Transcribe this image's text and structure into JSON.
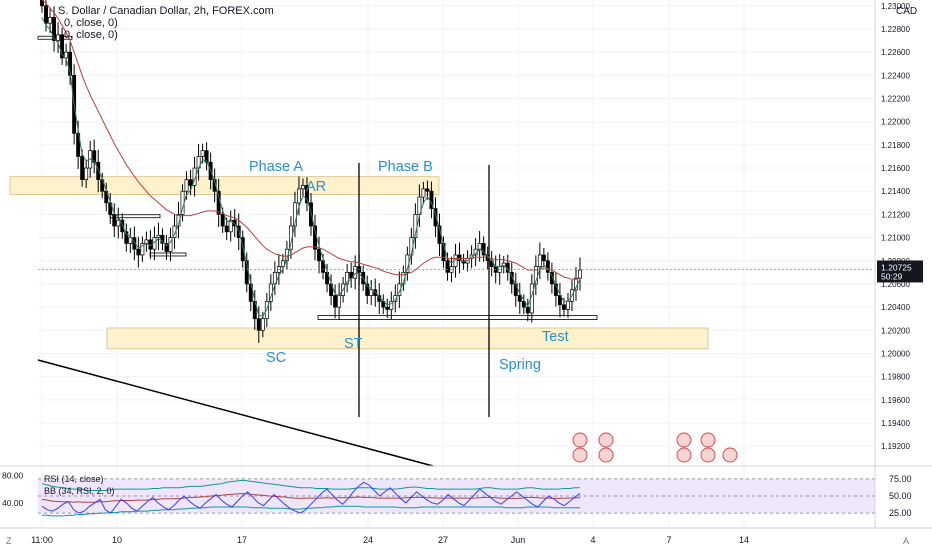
{
  "chart_header": {
    "title_fragment": "S. Dollar / Canadian Dollar, 2h, FOREX.com",
    "indicator_1": "0, close, 0)",
    "indicator_2": "0, close, 0)",
    "currency": "CAD"
  },
  "colors": {
    "bg": "#ffffff",
    "grid": "#f0f3fa",
    "candle": "#000000",
    "ma_fast": "#2a7a58",
    "ma_slow": "#b5403b",
    "zone_fill": "#fdf2cc",
    "annotation": "#2a8fd0",
    "trendline": "#000000",
    "rsi_bg": "#efe6fb",
    "rsi_line": "#3a3ff0",
    "bb_line": "#0e9a9a",
    "bb_mid": "#b5403b",
    "price_badge": "#131722",
    "axis_text": "#131722"
  },
  "chart_data": {
    "type": "line",
    "price_axis": {
      "ticks": [
        "1.23000",
        "1.22800",
        "1.22600",
        "1.22400",
        "1.22200",
        "1.22000",
        "1.21800",
        "1.21600",
        "1.21400",
        "1.21200",
        "1.21000",
        "1.20800",
        "1.20600",
        "1.20400",
        "1.20200",
        "1.20000",
        "1.19800",
        "1.19600",
        "1.19400",
        "1.19200"
      ],
      "ylim": [
        1.1915,
        1.2305
      ]
    },
    "time_axis": {
      "labels": [
        "11:00",
        "10",
        "17",
        "24",
        "27",
        "Jun",
        "4",
        "7",
        "14"
      ]
    },
    "last_price": "1.20725",
    "countdown": "50:29",
    "close_series": [
      1.23,
      1.2285,
      1.229,
      1.227,
      1.2275,
      1.2255,
      1.226,
      1.224,
      1.219,
      1.217,
      1.215,
      1.216,
      1.2175,
      1.2165,
      1.215,
      1.214,
      1.213,
      1.212,
      1.211,
      1.2115,
      1.2105,
      1.2095,
      1.21,
      1.209,
      1.2085,
      1.2095,
      1.2098,
      1.209,
      1.21,
      1.2102,
      1.2095,
      1.2088,
      1.21,
      1.211,
      1.212,
      1.214,
      1.215,
      1.2145,
      1.216,
      1.217,
      1.2175,
      1.2165,
      1.215,
      1.214,
      1.212,
      1.211,
      1.2105,
      1.2115,
      1.211,
      1.21,
      1.208,
      1.206,
      1.2045,
      1.203,
      1.202,
      1.203,
      1.2045,
      1.206,
      1.207,
      1.2075,
      1.208,
      1.209,
      1.211,
      1.213,
      1.2142,
      1.2145,
      1.213,
      1.211,
      1.209,
      1.208,
      1.207,
      1.206,
      1.205,
      1.204,
      1.205,
      1.206,
      1.207,
      1.2065,
      1.2075,
      1.207,
      1.206,
      1.205,
      1.2055,
      1.205,
      1.2045,
      1.204,
      1.2038,
      1.2045,
      1.205,
      1.206,
      1.207,
      1.2085,
      1.21,
      1.212,
      1.2135,
      1.2142,
      1.214,
      1.2125,
      1.211,
      1.2095,
      1.208,
      1.207,
      1.2075,
      1.2085,
      1.208,
      1.2078,
      1.2082,
      1.2085,
      1.209,
      1.2095,
      1.2085,
      1.208,
      1.2075,
      1.207,
      1.2075,
      1.2078,
      1.207,
      1.206,
      1.205,
      1.2045,
      1.204,
      1.2035,
      1.206,
      1.2075,
      1.2085,
      1.208,
      1.207,
      1.206,
      1.205,
      1.2042,
      1.2038,
      1.2045,
      1.2055,
      1.2065,
      1.2072
    ],
    "ma_fast_series": [
      1.229,
      1.2283,
      1.228,
      1.2272,
      1.2268,
      1.2258,
      1.2254,
      1.2243,
      1.2215,
      1.2193,
      1.2172,
      1.2166,
      1.2168,
      1.2166,
      1.2159,
      1.2151,
      1.2141,
      1.2131,
      1.2121,
      1.2118,
      1.2111,
      1.2103,
      1.2101,
      1.2096,
      1.2091,
      1.2093,
      1.2095,
      1.2093,
      1.2096,
      1.2099,
      1.2097,
      1.2093,
      1.2096,
      1.2103,
      1.2111,
      1.2125,
      1.2137,
      1.2141,
      1.215,
      1.216,
      1.2167,
      1.2166,
      1.2158,
      1.2149,
      1.2135,
      1.2123,
      1.2114,
      1.2114,
      1.2112,
      1.2106,
      1.2093,
      1.2077,
      1.2061,
      1.2046,
      1.2033,
      1.2032,
      1.2038,
      1.2049,
      1.2059,
      1.2067,
      1.2073,
      1.2081,
      1.2095,
      1.2112,
      1.2127,
      1.2136,
      1.2133,
      1.2122,
      1.2106,
      1.2093,
      1.2082,
      1.2071,
      1.2061,
      1.2051,
      1.205,
      1.2055,
      1.2062,
      1.2064,
      1.2069,
      1.2069,
      1.2065,
      1.2058,
      1.2056,
      1.2053,
      1.2049,
      1.2045,
      1.2042,
      1.2043,
      1.2046,
      1.2053,
      1.2061,
      1.2073,
      1.2086,
      1.2103,
      1.2119,
      1.213,
      1.2135,
      1.213,
      1.212,
      1.2108,
      1.2094,
      1.2082,
      1.2078,
      1.2081,
      1.2081,
      1.2079,
      1.208,
      1.2083,
      1.2086,
      1.209,
      1.2088,
      1.2084,
      1.208,
      1.2075,
      1.2075,
      1.2076,
      1.2073,
      1.2067,
      1.2059,
      1.2052,
      1.2046,
      1.2041,
      1.205,
      1.2062,
      1.2073,
      1.2076,
      1.2073,
      1.2067,
      1.2059,
      1.2051,
      1.2045,
      1.2045,
      1.205,
      1.2057,
      1.2064
    ],
    "ma_slow_series": [
      1.2305,
      1.2302,
      1.2298,
      1.2294,
      1.2289,
      1.2283,
      1.2277,
      1.227,
      1.226,
      1.225,
      1.224,
      1.2231,
      1.2223,
      1.2216,
      1.2209,
      1.2202,
      1.2195,
      1.2188,
      1.2181,
      1.2175,
      1.2169,
      1.2163,
      1.2158,
      1.2153,
      1.2148,
      1.2144,
      1.214,
      1.2136,
      1.2133,
      1.213,
      1.2127,
      1.2124,
      1.2122,
      1.212,
      1.2119,
      1.2119,
      1.2119,
      1.2119,
      1.212,
      1.2121,
      1.2122,
      1.2123,
      1.2123,
      1.2123,
      1.2122,
      1.2121,
      1.2119,
      1.2118,
      1.2117,
      1.2115,
      1.2112,
      1.2109,
      1.2105,
      1.2101,
      1.2097,
      1.2093,
      1.209,
      1.2088,
      1.2086,
      1.2085,
      1.2084,
      1.2084,
      1.2085,
      1.2087,
      1.2089,
      1.2091,
      1.2092,
      1.2092,
      1.2092,
      1.2091,
      1.209,
      1.2088,
      1.2086,
      1.2084,
      1.2082,
      1.2081,
      1.208,
      1.2079,
      1.2079,
      1.2078,
      1.2077,
      1.2076,
      1.2075,
      1.2074,
      1.2073,
      1.2071,
      1.207,
      1.2069,
      1.2068,
      1.2068,
      1.2068,
      1.2069,
      1.207,
      1.2072,
      1.2075,
      1.2078,
      1.208,
      1.2082,
      1.2083,
      1.2083,
      1.2083,
      1.2082,
      1.2082,
      1.2082,
      1.2082,
      1.2082,
      1.2082,
      1.2082,
      1.2083,
      1.2083,
      1.2083,
      1.2083,
      1.2082,
      1.2081,
      1.2081,
      1.2081,
      1.208,
      1.2079,
      1.2078,
      1.2076,
      1.2074,
      1.2072,
      1.2072,
      1.2072,
      1.2073,
      1.2073,
      1.2073,
      1.2072,
      1.207,
      1.2068,
      1.2066,
      1.2065,
      1.2064,
      1.2064,
      1.2065
    ],
    "annotations": [
      {
        "text": "Phase A"
      },
      {
        "text": "Phase B"
      },
      {
        "text": "AR"
      },
      {
        "text": "SC"
      },
      {
        "text": "ST"
      },
      {
        "text": "Spring"
      },
      {
        "text": "Test"
      }
    ],
    "rsi_panel": {
      "legend_1": "RSI (14, close)",
      "legend_2": "BB (34, RSI, 2, 0)",
      "left_ticks": [
        "80.00",
        "40.00"
      ],
      "right_ticks": [
        "75.00",
        "50.00",
        "25.00"
      ],
      "ylim": [
        15,
        85
      ],
      "rsi": [
        35,
        30,
        28,
        32,
        38,
        42,
        30,
        25,
        28,
        35,
        40,
        45,
        30,
        25,
        35,
        45,
        40,
        32,
        28,
        35,
        42,
        48,
        40,
        34,
        30,
        36,
        44,
        50,
        42,
        36,
        32,
        40,
        46,
        52,
        44,
        38,
        34,
        42,
        50,
        56,
        48,
        40,
        36,
        44,
        52,
        45,
        38,
        32,
        28,
        25,
        30,
        38,
        46,
        54,
        60,
        52,
        44,
        38,
        46,
        56,
        64,
        70,
        66,
        58,
        50,
        56,
        62,
        54,
        46,
        40,
        48,
        56,
        50,
        44,
        40,
        38,
        44,
        52,
        46,
        40,
        36,
        44,
        52,
        60,
        54,
        48,
        42,
        38,
        44,
        50,
        56,
        50,
        44,
        38,
        34,
        42,
        50,
        46,
        40,
        36,
        42,
        48,
        54
      ],
      "bb_upper": [
        68,
        66,
        64,
        63,
        62,
        61,
        60,
        60,
        59,
        58,
        58,
        58,
        58,
        59,
        60,
        60,
        60,
        60,
        60,
        60,
        60,
        61,
        61,
        62,
        62,
        62,
        62,
        63,
        64,
        64,
        64,
        65,
        66,
        67,
        68,
        70,
        71,
        72,
        73,
        72,
        71,
        70,
        69,
        68,
        67,
        66,
        65,
        64,
        63,
        62,
        62,
        62,
        61,
        61,
        61,
        60,
        60,
        60,
        60,
        61,
        62,
        62,
        62,
        61,
        60,
        60,
        60,
        60,
        61,
        62,
        63,
        63,
        62,
        61,
        61,
        60,
        60,
        60,
        60,
        60,
        60,
        60,
        60,
        61,
        62,
        62,
        61,
        60,
        60,
        60,
        60,
        61,
        62,
        62,
        61,
        60,
        60,
        60,
        60,
        61,
        61,
        62,
        62
      ],
      "bb_lower": [
        22,
        22,
        21,
        21,
        21,
        22,
        22,
        23,
        23,
        24,
        24,
        25,
        25,
        26,
        26,
        27,
        27,
        27,
        28,
        28,
        28,
        29,
        29,
        30,
        30,
        30,
        31,
        31,
        32,
        32,
        33,
        33,
        34,
        34,
        34,
        34,
        34,
        34,
        34,
        34,
        33,
        33,
        33,
        32,
        32,
        32,
        32,
        31,
        31,
        31,
        32,
        32,
        33,
        33,
        34,
        34,
        35,
        35,
        35,
        35,
        35,
        34,
        34,
        34,
        34,
        34,
        34,
        34,
        33,
        33,
        33,
        33,
        34,
        34,
        34,
        34,
        34,
        34,
        34,
        34,
        34,
        34,
        34,
        34,
        34,
        34,
        34,
        34,
        33,
        33,
        33,
        33,
        34,
        34,
        34,
        34,
        34,
        33,
        33,
        33,
        33,
        33,
        33
      ]
    }
  }
}
